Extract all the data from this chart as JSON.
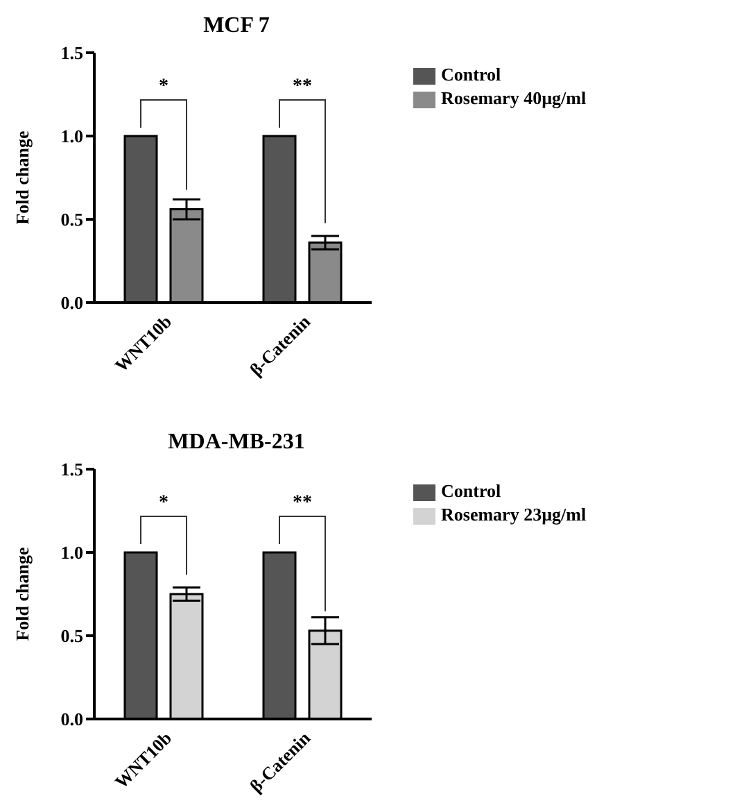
{
  "chart_data": [
    {
      "type": "bar",
      "title": "MCF 7",
      "ylabel": "Fold change",
      "categories": [
        "WNT10b",
        "β-Catenin"
      ],
      "series": [
        {
          "name": "Control",
          "color": "#555555",
          "values": [
            1.0,
            1.0
          ]
        },
        {
          "name": "Rosemary 40µg/ml",
          "color": "#8a8a8a",
          "values": [
            0.56,
            0.36
          ],
          "errors": [
            0.06,
            0.04
          ]
        }
      ],
      "ylim": [
        0,
        1.5
      ],
      "yticks": [
        {
          "value": 0,
          "label": "0.0"
        },
        {
          "value": 0.5,
          "label": "0.5"
        },
        {
          "value": 1,
          "label": "1.0"
        },
        {
          "value": 1.5,
          "label": "1.5"
        }
      ],
      "grid": false,
      "legend": "top right",
      "annotations": [
        "*",
        "**"
      ]
    },
    {
      "type": "bar",
      "title": "MDA-MB-231",
      "ylabel": "Fold change",
      "categories": [
        "WNT10b",
        "β-Catenin"
      ],
      "series": [
        {
          "name": "Control",
          "color": "#555555",
          "values": [
            1.0,
            1.0
          ]
        },
        {
          "name": "Rosemary 23µg/ml",
          "color": "#d3d3d3",
          "values": [
            0.75,
            0.53
          ],
          "errors": [
            0.04,
            0.08
          ]
        }
      ],
      "ylim": [
        0,
        1.5
      ],
      "yticks": [
        {
          "value": 0,
          "label": "0.0"
        },
        {
          "value": 0.5,
          "label": "0.5"
        },
        {
          "value": 1,
          "label": "1.0"
        },
        {
          "value": 1.5,
          "label": "1.5"
        }
      ],
      "grid": false,
      "legend": "top right",
      "annotations": [
        "*",
        "**"
      ]
    }
  ]
}
